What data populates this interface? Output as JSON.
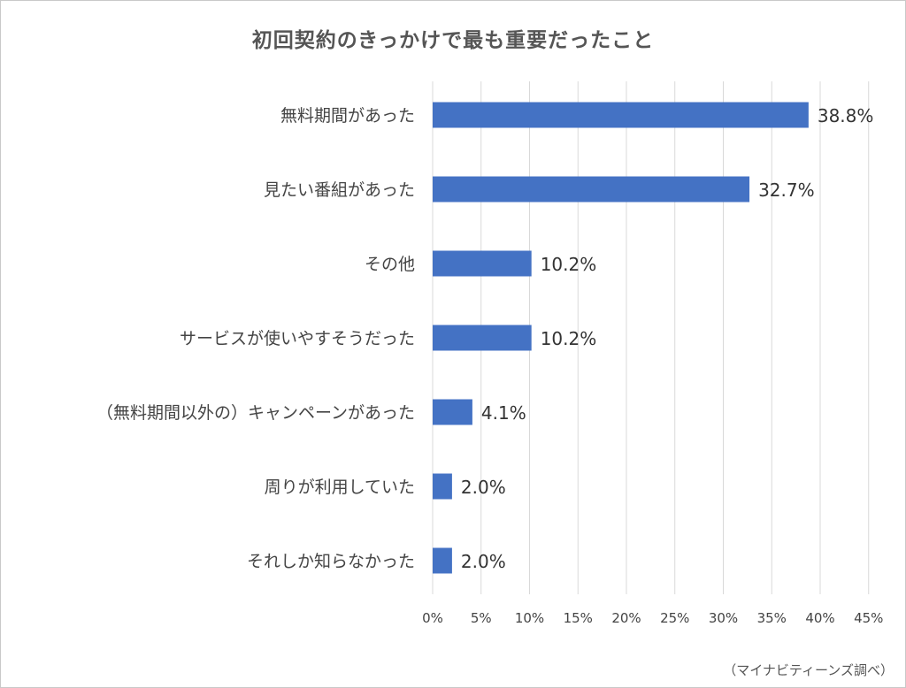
{
  "chart_data": {
    "type": "bar",
    "orientation": "horizontal",
    "title": "初回契約のきっかけで最も重要だったこと",
    "categories": [
      "無料期間があった",
      "見たい番組があった",
      "その他",
      "サービスが使いやすそうだった",
      "（無料期間以外の）キャンペーンがあった",
      "周りが利用していた",
      "それしか知らなかった"
    ],
    "values": [
      38.8,
      32.7,
      10.2,
      10.2,
      4.1,
      2.0,
      2.0
    ],
    "value_labels": [
      "38.8%",
      "32.7%",
      "10.2%",
      "10.2%",
      "4.1%",
      "2.0%",
      "2.0%"
    ],
    "xlim": [
      0,
      45
    ],
    "x_ticks": [
      "0%",
      "5%",
      "10%",
      "15%",
      "20%",
      "25%",
      "30%",
      "35%",
      "40%",
      "45%"
    ],
    "grid": true,
    "legend": "none",
    "bar_color": "#4472c4",
    "grid_color": "#d9d9d9"
  },
  "source_note": "（マイナビティーンズ調べ）"
}
